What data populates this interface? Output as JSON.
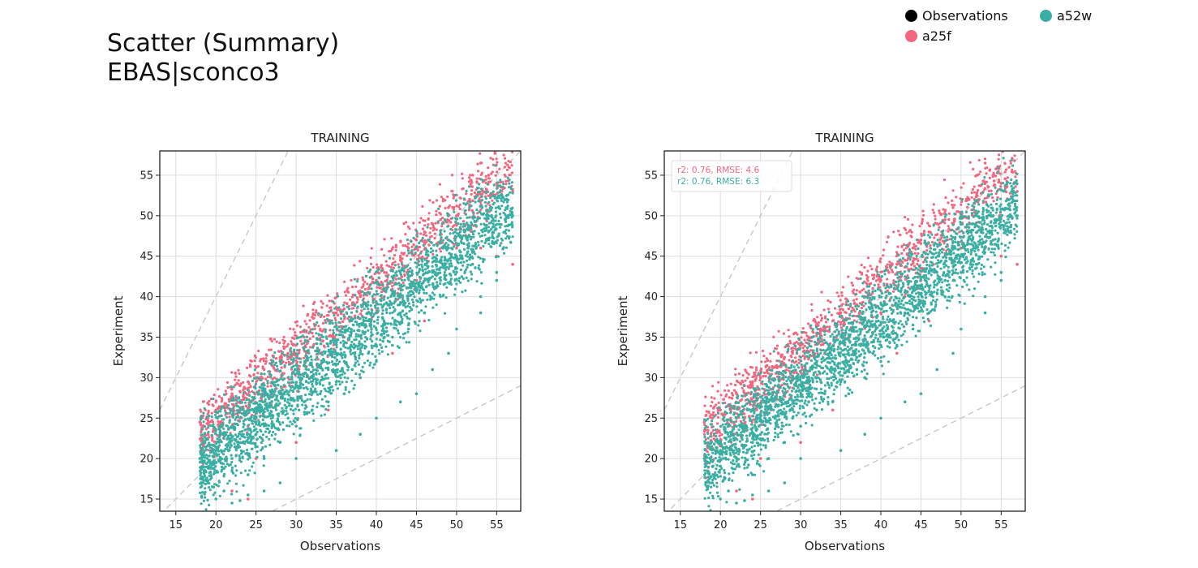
{
  "page": {
    "title_line1": "Scatter (Summary)",
    "title_line2": "EBAS|sconco3"
  },
  "legend": {
    "items": [
      {
        "label": "Observations",
        "color": "#000000"
      },
      {
        "label": "a52w",
        "color": "#3aaea3"
      },
      {
        "label": "a25f",
        "color": "#f2667f"
      }
    ]
  },
  "chart_data": [
    {
      "type": "scatter",
      "title": "TRAINING",
      "xlabel": "Observations",
      "ylabel": "Experiment",
      "xlim": [
        13,
        58
      ],
      "ylim": [
        13.5,
        58
      ],
      "xticks": [
        15,
        20,
        25,
        30,
        35,
        40,
        45,
        50,
        55
      ],
      "yticks": [
        15,
        20,
        25,
        30,
        35,
        40,
        45,
        50,
        55
      ],
      "grid": true,
      "reference_lines": [
        "1:1",
        "2:1",
        "1:2"
      ],
      "annotation": [],
      "series": [
        {
          "name": "a25f",
          "color": "#f2667f",
          "points": [
            [
              18,
              24.5
            ],
            [
              19,
              25
            ],
            [
              20,
              26
            ],
            [
              21,
              26.5
            ],
            [
              22,
              28
            ],
            [
              23,
              29
            ],
            [
              24,
              29.5
            ],
            [
              25,
              30
            ],
            [
              26,
              31
            ],
            [
              27,
              31.5
            ],
            [
              28,
              32.5
            ],
            [
              29,
              33
            ],
            [
              30,
              34
            ],
            [
              31,
              35
            ],
            [
              32,
              35.5
            ],
            [
              33,
              36
            ],
            [
              34,
              37
            ],
            [
              35,
              38
            ],
            [
              36,
              38.5
            ],
            [
              37,
              39
            ],
            [
              38,
              40
            ],
            [
              39,
              41
            ],
            [
              40,
              42
            ],
            [
              41,
              43
            ],
            [
              42,
              44
            ],
            [
              43,
              44.5
            ],
            [
              44,
              46
            ],
            [
              45,
              47
            ],
            [
              46,
              48
            ],
            [
              47,
              49
            ],
            [
              48,
              49.5
            ],
            [
              49,
              51
            ],
            [
              50,
              50
            ],
            [
              51,
              52
            ],
            [
              52,
              55
            ],
            [
              53,
              56.5
            ],
            [
              54,
              55
            ],
            [
              55,
              54
            ],
            [
              56,
              52
            ],
            [
              57,
              53
            ],
            [
              53,
              46
            ],
            [
              55,
              45
            ],
            [
              57,
              44
            ],
            [
              30,
              22
            ],
            [
              34,
              26
            ],
            [
              38,
              30
            ],
            [
              42,
              33
            ],
            [
              46,
              37
            ],
            [
              25,
              20
            ],
            [
              22,
              16
            ],
            [
              24,
              15
            ],
            [
              27,
              28
            ],
            [
              33,
              33
            ],
            [
              40,
              38
            ],
            [
              45,
              42
            ],
            [
              50,
              46
            ],
            [
              20,
              22
            ],
            [
              23,
              25
            ],
            [
              29,
              30
            ],
            [
              36,
              35
            ],
            [
              43,
              40
            ]
          ]
        },
        {
          "name": "a52w",
          "color": "#3aaea3",
          "points": [
            [
              18,
              20
            ],
            [
              19,
              17
            ],
            [
              20,
              15
            ],
            [
              21,
              16
            ],
            [
              22,
              14.5
            ],
            [
              23,
              14.8
            ],
            [
              24,
              15.5
            ],
            [
              19,
              19
            ],
            [
              20,
              21
            ],
            [
              22,
              20
            ],
            [
              24,
              22
            ],
            [
              26,
              20
            ],
            [
              28,
              22
            ],
            [
              30,
              24
            ],
            [
              32,
              26
            ],
            [
              34,
              27
            ],
            [
              36,
              28
            ],
            [
              38,
              30
            ],
            [
              40,
              32
            ],
            [
              42,
              34
            ],
            [
              44,
              36
            ],
            [
              46,
              38
            ],
            [
              48,
              42
            ],
            [
              50,
              45
            ],
            [
              52,
              48
            ],
            [
              54,
              50
            ],
            [
              56,
              52
            ],
            [
              57,
              50
            ],
            [
              55,
              43
            ],
            [
              53,
              40
            ],
            [
              22,
              24
            ],
            [
              24,
              26
            ],
            [
              26,
              27
            ],
            [
              28,
              28
            ],
            [
              30,
              29
            ],
            [
              32,
              30
            ],
            [
              34,
              31
            ],
            [
              36,
              32
            ],
            [
              38,
              33
            ],
            [
              40,
              34
            ],
            [
              42,
              35
            ],
            [
              44,
              36.5
            ],
            [
              46,
              38
            ],
            [
              48,
              40
            ],
            [
              50,
              43
            ],
            [
              52,
              44
            ],
            [
              54,
              47
            ],
            [
              56,
              48
            ],
            [
              25,
              23
            ],
            [
              27,
              24
            ],
            [
              29,
              25
            ],
            [
              31,
              27
            ],
            [
              33,
              28
            ],
            [
              35,
              29.5
            ],
            [
              37,
              31
            ],
            [
              39,
              33
            ],
            [
              41,
              35
            ],
            [
              43,
              38
            ],
            [
              45,
              41
            ],
            [
              47,
              43
            ],
            [
              49,
              46
            ],
            [
              51,
              48
            ],
            [
              35,
              21
            ],
            [
              38,
              23
            ],
            [
              40,
              25
            ],
            [
              43,
              27
            ],
            [
              45,
              28
            ],
            [
              47,
              31
            ],
            [
              49,
              33
            ],
            [
              50,
              36
            ],
            [
              53,
              38
            ],
            [
              55,
              42
            ],
            [
              30,
              20
            ],
            [
              28,
              17
            ],
            [
              26,
              16
            ],
            [
              24,
              18
            ]
          ]
        }
      ]
    },
    {
      "type": "scatter",
      "title": "TRAINING",
      "xlabel": "Observations",
      "ylabel": "Experiment",
      "xlim": [
        13,
        58
      ],
      "ylim": [
        13.5,
        58
      ],
      "xticks": [
        15,
        20,
        25,
        30,
        35,
        40,
        45,
        50,
        55
      ],
      "yticks": [
        15,
        20,
        25,
        30,
        35,
        40,
        45,
        50,
        55
      ],
      "grid": true,
      "reference_lines": [
        "1:1",
        "2:1",
        "1:2"
      ],
      "annotation": [
        {
          "text": "r2: 0.76, RMSE: 4.6",
          "color": "#f2667f"
        },
        {
          "text": "r2: 0.76, RMSE: 6.3",
          "color": "#3aaea3"
        }
      ],
      "series": [
        {
          "name": "a25f",
          "color": "#f2667f",
          "points": [
            [
              18,
              24.5
            ],
            [
              19,
              25
            ],
            [
              20,
              26
            ],
            [
              21,
              26.5
            ],
            [
              22,
              28
            ],
            [
              23,
              29
            ],
            [
              24,
              29.5
            ],
            [
              25,
              30
            ],
            [
              26,
              31
            ],
            [
              27,
              31.5
            ],
            [
              28,
              32.5
            ],
            [
              29,
              33
            ],
            [
              30,
              34
            ],
            [
              31,
              35
            ],
            [
              32,
              35.5
            ],
            [
              33,
              36
            ],
            [
              34,
              37
            ],
            [
              35,
              38
            ],
            [
              36,
              38.5
            ],
            [
              37,
              39
            ],
            [
              38,
              40
            ],
            [
              39,
              41
            ],
            [
              40,
              42
            ],
            [
              41,
              43
            ],
            [
              42,
              44
            ],
            [
              43,
              44.5
            ],
            [
              44,
              46
            ],
            [
              45,
              47
            ],
            [
              46,
              48
            ],
            [
              47,
              49
            ],
            [
              48,
              49.5
            ],
            [
              49,
              51
            ],
            [
              50,
              50
            ],
            [
              51,
              52
            ],
            [
              52,
              55
            ],
            [
              53,
              56.5
            ],
            [
              54,
              55
            ],
            [
              55,
              54
            ],
            [
              56,
              52
            ],
            [
              57,
              53
            ],
            [
              53,
              46
            ],
            [
              55,
              45
            ],
            [
              57,
              44
            ],
            [
              30,
              22
            ],
            [
              34,
              26
            ],
            [
              38,
              30
            ],
            [
              42,
              33
            ],
            [
              46,
              37
            ],
            [
              25,
              20
            ],
            [
              22,
              16
            ],
            [
              24,
              15
            ],
            [
              27,
              28
            ],
            [
              33,
              33
            ],
            [
              40,
              38
            ],
            [
              45,
              42
            ],
            [
              50,
              46
            ],
            [
              20,
              22
            ],
            [
              23,
              25
            ],
            [
              29,
              30
            ],
            [
              36,
              35
            ],
            [
              43,
              40
            ]
          ]
        },
        {
          "name": "a52w",
          "color": "#3aaea3",
          "points": [
            [
              18,
              20
            ],
            [
              19,
              17
            ],
            [
              20,
              15
            ],
            [
              21,
              16
            ],
            [
              22,
              14.5
            ],
            [
              23,
              14.8
            ],
            [
              24,
              15.5
            ],
            [
              19,
              19
            ],
            [
              20,
              21
            ],
            [
              22,
              20
            ],
            [
              24,
              22
            ],
            [
              26,
              20
            ],
            [
              28,
              22
            ],
            [
              30,
              24
            ],
            [
              32,
              26
            ],
            [
              34,
              27
            ],
            [
              36,
              28
            ],
            [
              38,
              30
            ],
            [
              40,
              32
            ],
            [
              42,
              34
            ],
            [
              44,
              36
            ],
            [
              46,
              38
            ],
            [
              48,
              42
            ],
            [
              50,
              45
            ],
            [
              52,
              48
            ],
            [
              54,
              50
            ],
            [
              56,
              52
            ],
            [
              57,
              50
            ],
            [
              55,
              43
            ],
            [
              53,
              40
            ],
            [
              22,
              24
            ],
            [
              24,
              26
            ],
            [
              26,
              27
            ],
            [
              28,
              28
            ],
            [
              30,
              29
            ],
            [
              32,
              30
            ],
            [
              34,
              31
            ],
            [
              36,
              32
            ],
            [
              38,
              33
            ],
            [
              40,
              34
            ],
            [
              42,
              35
            ],
            [
              44,
              36.5
            ],
            [
              46,
              38
            ],
            [
              48,
              40
            ],
            [
              50,
              43
            ],
            [
              52,
              44
            ],
            [
              54,
              47
            ],
            [
              56,
              48
            ],
            [
              25,
              23
            ],
            [
              27,
              24
            ],
            [
              29,
              25
            ],
            [
              31,
              27
            ],
            [
              33,
              28
            ],
            [
              35,
              29.5
            ],
            [
              37,
              31
            ],
            [
              39,
              33
            ],
            [
              41,
              35
            ],
            [
              43,
              38
            ],
            [
              45,
              41
            ],
            [
              47,
              43
            ],
            [
              49,
              46
            ],
            [
              51,
              48
            ],
            [
              35,
              21
            ],
            [
              38,
              23
            ],
            [
              40,
              25
            ],
            [
              43,
              27
            ],
            [
              45,
              28
            ],
            [
              47,
              31
            ],
            [
              49,
              33
            ],
            [
              50,
              36
            ],
            [
              53,
              38
            ],
            [
              55,
              42
            ],
            [
              30,
              20
            ],
            [
              28,
              17
            ],
            [
              26,
              16
            ],
            [
              24,
              18
            ]
          ]
        }
      ]
    }
  ]
}
